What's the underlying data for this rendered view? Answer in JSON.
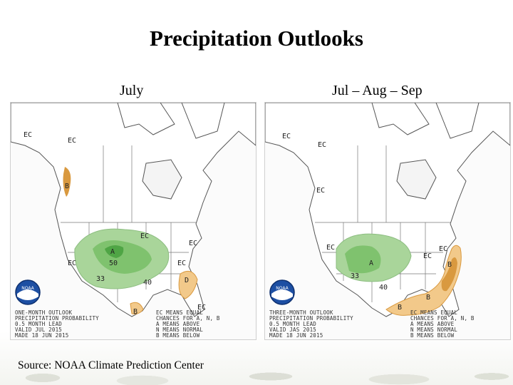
{
  "slide": {
    "title": "Precipitation Outlooks",
    "source": "Source:  NOAA Climate Prediction Center"
  },
  "colors": {
    "above_light": "#a9d59a",
    "above_mid": "#7fc26e",
    "above_dark": "#4fa545",
    "below_light": "#f2c98a",
    "below_dark": "#d9993f",
    "land": "#ffffff",
    "water": "#ffffff",
    "outline": "#555555"
  },
  "maps": [
    {
      "label": "July",
      "logo_text": "NOAA",
      "legend": [
        "ONE-MONTH OUTLOOK",
        "PRECIPITATION PROBABILITY",
        "0.5 MONTH LEAD",
        "VALID JUL 2015",
        "MADE 18 JUN 2015"
      ],
      "key": [
        "EC MEANS EQUAL",
        "CHANCES FOR A, N, B",
        "A MEANS ABOVE",
        "N MEANS NORMAL",
        "B MEANS BELOW"
      ],
      "region_labels": [
        "EC",
        "EC",
        "B",
        "EC",
        "EC",
        "EC",
        "A",
        "50",
        "40",
        "33",
        "EC",
        "D",
        "EC",
        "B"
      ]
    },
    {
      "label": "Jul – Aug – Sep",
      "logo_text": "NOAA",
      "legend": [
        "THREE-MONTH OUTLOOK",
        "PRECIPITATION PROBABILITY",
        "0.5 MONTH LEAD",
        "VALID JAS 2015",
        "MADE 18 JUN 2015"
      ],
      "key": [
        "EC MEANS EQUAL",
        "CHANCES FOR A, N, B",
        "A MEANS ABOVE",
        "N MEANS NORMAL",
        "B MEANS BELOW"
      ],
      "region_labels": [
        "EC",
        "EC",
        "EC",
        "EC",
        "EC",
        "A",
        "40",
        "33",
        "EC",
        "B",
        "B",
        "B"
      ]
    }
  ]
}
